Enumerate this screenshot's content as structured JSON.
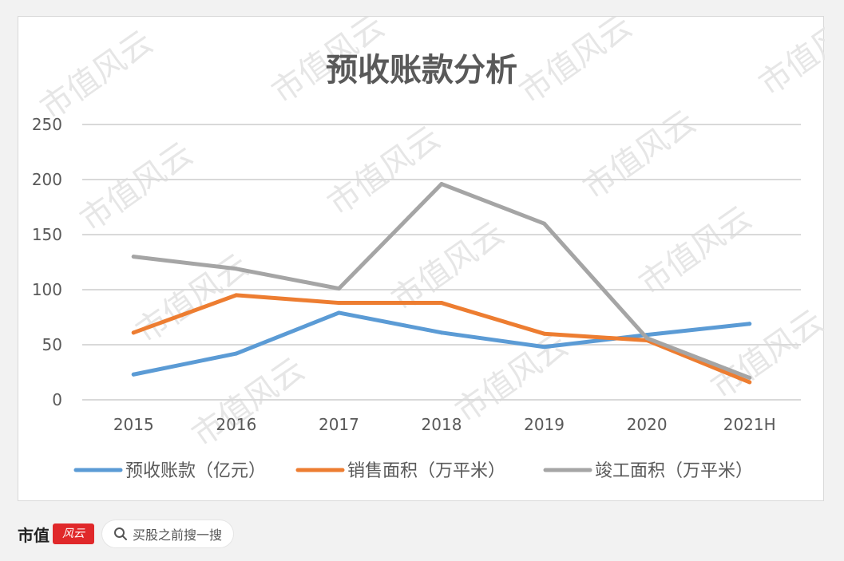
{
  "chart_data": {
    "type": "line",
    "title": "预收账款分析",
    "categories": [
      "2015",
      "2016",
      "2017",
      "2018",
      "2019",
      "2020",
      "2021H"
    ],
    "ylim": [
      0,
      250
    ],
    "yticks": [
      0,
      50,
      100,
      150,
      200,
      250
    ],
    "grid": true,
    "legend_position": "bottom",
    "series": [
      {
        "name": "预收账款（亿元）",
        "color": "#5b9bd5",
        "values": [
          23,
          42,
          79,
          61,
          48,
          59,
          69
        ]
      },
      {
        "name": "销售面积（万平米）",
        "color": "#ed7d31",
        "values": [
          61,
          95,
          88,
          88,
          60,
          54,
          16
        ]
      },
      {
        "name": "竣工面积（万平米）",
        "color": "#a5a5a5",
        "values": [
          130,
          119,
          101,
          196,
          160,
          56,
          20
        ]
      }
    ]
  },
  "watermark": "市值风云",
  "footer": {
    "brand_name": "市值",
    "brand_logo_text": "风云",
    "search_placeholder": "买股之前搜一搜"
  }
}
